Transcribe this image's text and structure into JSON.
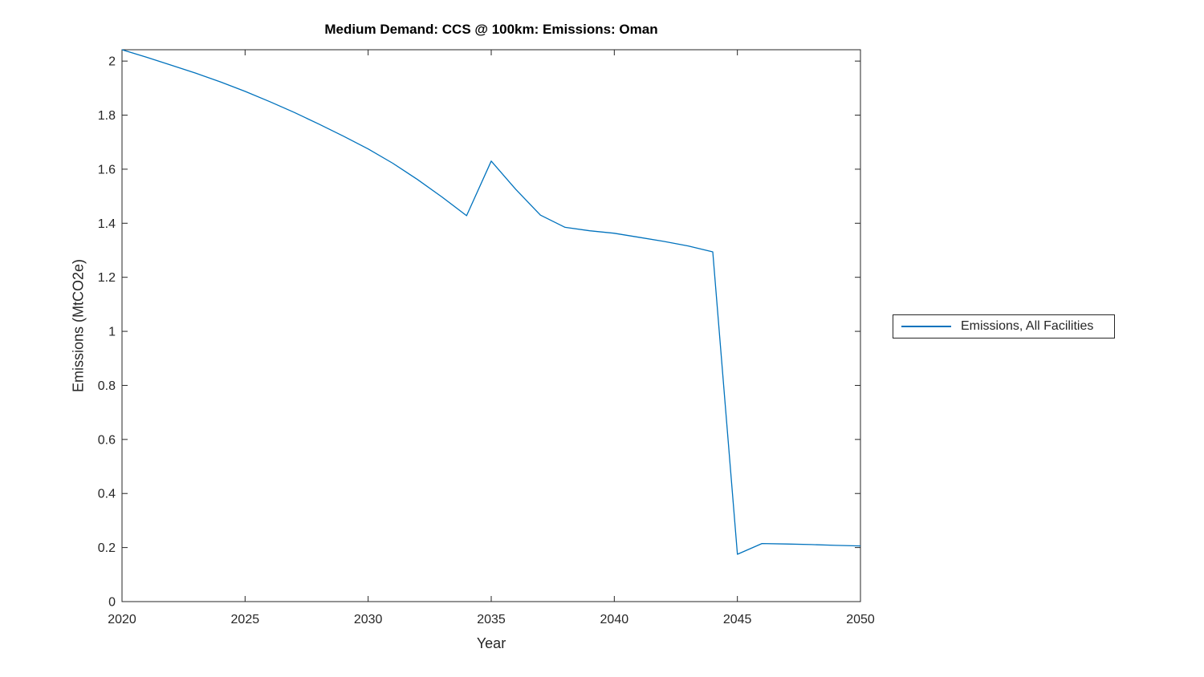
{
  "figure": {
    "background": "#ffffff"
  },
  "chart_data": {
    "type": "line",
    "title": "Medium Demand: CCS @ 100km: Emissions: Oman",
    "xlabel": "Year",
    "ylabel": "Emissions (MtCO2e)",
    "grid": false,
    "legend_position": "outside-right",
    "axis_color": "#262626",
    "x_range": [
      2020,
      2050
    ],
    "y_range": [
      0,
      2.042
    ],
    "x_ticks": [
      "2020",
      "2025",
      "2030",
      "2035",
      "2040",
      "2045",
      "2050"
    ],
    "y_ticks": [
      "0",
      "0.2",
      "0.4",
      "0.6",
      "0.8",
      "1",
      "1.2",
      "1.4",
      "1.6",
      "1.8",
      "2"
    ],
    "series": [
      {
        "name": "Emissions, All Facilities",
        "color": "#0072BD",
        "x": [
          2020,
          2021,
          2022,
          2023,
          2024,
          2025,
          2026,
          2027,
          2028,
          2029,
          2030,
          2031,
          2032,
          2033,
          2034,
          2035,
          2036,
          2037,
          2038,
          2039,
          2040,
          2041,
          2042,
          2043,
          2044,
          2045,
          2046,
          2047,
          2048,
          2049,
          2050
        ],
        "values": [
          2.042,
          2.014,
          1.985,
          1.955,
          1.923,
          1.888,
          1.85,
          1.81,
          1.767,
          1.722,
          1.675,
          1.622,
          1.562,
          1.497,
          1.428,
          1.63,
          1.525,
          1.43,
          1.385,
          1.372,
          1.363,
          1.348,
          1.333,
          1.316,
          1.294,
          0.175,
          0.215,
          0.213,
          0.211,
          0.208,
          0.206
        ]
      }
    ]
  }
}
